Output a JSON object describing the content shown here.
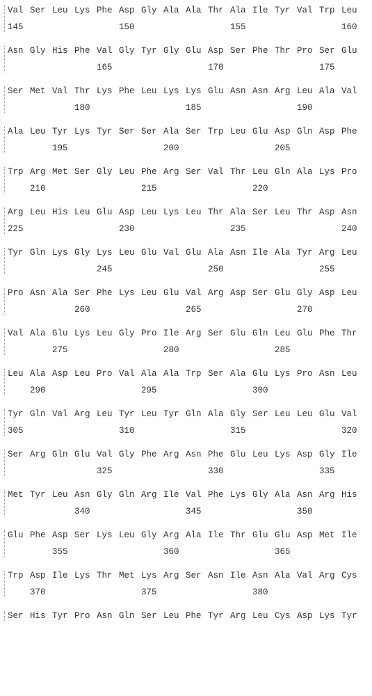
{
  "rows": [
    {
      "aa": [
        "Val",
        "Ser",
        "Leu",
        "Lys",
        "Phe",
        "Asp",
        "Gly",
        "Ala",
        "Ala",
        "Thr",
        "Ala",
        "Ile",
        "Tyr",
        "Val",
        "Trp",
        "Leu"
      ],
      "nums": [
        "145",
        "",
        "",
        "",
        "",
        "150",
        "",
        "",
        "",
        "",
        "155",
        "",
        "",
        "",
        "",
        "160"
      ]
    },
    {
      "aa": [
        "Asn",
        "Gly",
        "His",
        "Phe",
        "Val",
        "Gly",
        "Tyr",
        "Gly",
        "Glu",
        "Asp",
        "Ser",
        "Phe",
        "Thr",
        "Pro",
        "Ser",
        "Glu"
      ],
      "nums": [
        "",
        "",
        "",
        "",
        "165",
        "",
        "",
        "",
        "",
        "170",
        "",
        "",
        "",
        "",
        "175",
        ""
      ]
    },
    {
      "aa": [
        "Ser",
        "Met",
        "Val",
        "Thr",
        "Lys",
        "Phe",
        "Leu",
        "Lys",
        "Lys",
        "Glu",
        "Asn",
        "Asn",
        "Arg",
        "Leu",
        "Ala",
        "Val"
      ],
      "nums": [
        "",
        "",
        "",
        "180",
        "",
        "",
        "",
        "",
        "185",
        "",
        "",
        "",
        "",
        "190",
        "",
        ""
      ]
    },
    {
      "aa": [
        "Ala",
        "Leu",
        "Tyr",
        "Lys",
        "Tyr",
        "Ser",
        "Ser",
        "Ala",
        "Ser",
        "Trp",
        "Leu",
        "Glu",
        "Asp",
        "Gln",
        "Asp",
        "Phe"
      ],
      "nums": [
        "",
        "",
        "195",
        "",
        "",
        "",
        "",
        "200",
        "",
        "",
        "",
        "",
        "205",
        "",
        "",
        ""
      ]
    },
    {
      "aa": [
        "Trp",
        "Arg",
        "Met",
        "Ser",
        "Gly",
        "Leu",
        "Phe",
        "Arg",
        "Ser",
        "Val",
        "Thr",
        "Leu",
        "Gln",
        "Ala",
        "Lys",
        "Pro"
      ],
      "nums": [
        "",
        "210",
        "",
        "",
        "",
        "",
        "215",
        "",
        "",
        "",
        "",
        "220",
        "",
        "",
        "",
        ""
      ]
    },
    {
      "aa": [
        "Arg",
        "Leu",
        "His",
        "Leu",
        "Glu",
        "Asp",
        "Leu",
        "Lys",
        "Leu",
        "Thr",
        "Ala",
        "Ser",
        "Leu",
        "Thr",
        "Asp",
        "Asn"
      ],
      "nums": [
        "225",
        "",
        "",
        "",
        "",
        "230",
        "",
        "",
        "",
        "",
        "235",
        "",
        "",
        "",
        "",
        "240"
      ]
    },
    {
      "aa": [
        "Tyr",
        "Gln",
        "Lys",
        "Gly",
        "Lys",
        "Leu",
        "Glu",
        "Val",
        "Glu",
        "Ala",
        "Asn",
        "Ile",
        "Ala",
        "Tyr",
        "Arg",
        "Leu"
      ],
      "nums": [
        "",
        "",
        "",
        "",
        "245",
        "",
        "",
        "",
        "",
        "250",
        "",
        "",
        "",
        "",
        "255",
        ""
      ]
    },
    {
      "aa": [
        "Pro",
        "Asn",
        "Ala",
        "Ser",
        "Phe",
        "Lys",
        "Leu",
        "Glu",
        "Val",
        "Arg",
        "Asp",
        "Ser",
        "Glu",
        "Gly",
        "Asp",
        "Leu"
      ],
      "nums": [
        "",
        "",
        "",
        "260",
        "",
        "",
        "",
        "",
        "265",
        "",
        "",
        "",
        "",
        "270",
        "",
        ""
      ]
    },
    {
      "aa": [
        "Val",
        "Ala",
        "Glu",
        "Lys",
        "Leu",
        "Gly",
        "Pro",
        "Ile",
        "Arg",
        "Ser",
        "Glu",
        "Gln",
        "Leu",
        "Glu",
        "Phe",
        "Thr"
      ],
      "nums": [
        "",
        "",
        "275",
        "",
        "",
        "",
        "",
        "280",
        "",
        "",
        "",
        "",
        "285",
        "",
        "",
        ""
      ]
    },
    {
      "aa": [
        "Leu",
        "Ala",
        "Asp",
        "Leu",
        "Pro",
        "Val",
        "Ala",
        "Ala",
        "Trp",
        "Ser",
        "Ala",
        "Glu",
        "Lys",
        "Pro",
        "Asn",
        "Leu"
      ],
      "nums": [
        "",
        "290",
        "",
        "",
        "",
        "",
        "295",
        "",
        "",
        "",
        "",
        "300",
        "",
        "",
        "",
        ""
      ]
    },
    {
      "aa": [
        "Tyr",
        "Gln",
        "Val",
        "Arg",
        "Leu",
        "Tyr",
        "Leu",
        "Tyr",
        "Gln",
        "Ala",
        "Gly",
        "Ser",
        "Leu",
        "Leu",
        "Glu",
        "Val"
      ],
      "nums": [
        "305",
        "",
        "",
        "",
        "",
        "310",
        "",
        "",
        "",
        "",
        "315",
        "",
        "",
        "",
        "",
        "320"
      ]
    },
    {
      "aa": [
        "Ser",
        "Arg",
        "Gln",
        "Glu",
        "Val",
        "Gly",
        "Phe",
        "Arg",
        "Asn",
        "Phe",
        "Glu",
        "Leu",
        "Lys",
        "Asp",
        "Gly",
        "Ile"
      ],
      "nums": [
        "",
        "",
        "",
        "",
        "325",
        "",
        "",
        "",
        "",
        "330",
        "",
        "",
        "",
        "",
        "335",
        ""
      ]
    },
    {
      "aa": [
        "Met",
        "Tyr",
        "Leu",
        "Asn",
        "Gly",
        "Gln",
        "Arg",
        "Ile",
        "Val",
        "Phe",
        "Lys",
        "Gly",
        "Ala",
        "Asn",
        "Arg",
        "His"
      ],
      "nums": [
        "",
        "",
        "",
        "340",
        "",
        "",
        "",
        "",
        "345",
        "",
        "",
        "",
        "",
        "350",
        "",
        ""
      ]
    },
    {
      "aa": [
        "Glu",
        "Phe",
        "Asp",
        "Ser",
        "Lys",
        "Leu",
        "Gly",
        "Arg",
        "Ala",
        "Ile",
        "Thr",
        "Glu",
        "Glu",
        "Asp",
        "Met",
        "Ile"
      ],
      "nums": [
        "",
        "",
        "355",
        "",
        "",
        "",
        "",
        "360",
        "",
        "",
        "",
        "",
        "365",
        "",
        "",
        ""
      ]
    },
    {
      "aa": [
        "Trp",
        "Asp",
        "Ile",
        "Lys",
        "Thr",
        "Met",
        "Lys",
        "Arg",
        "Ser",
        "Asn",
        "Ile",
        "Asn",
        "Ala",
        "Val",
        "Arg",
        "Cys"
      ],
      "nums": [
        "",
        "370",
        "",
        "",
        "",
        "",
        "375",
        "",
        "",
        "",
        "",
        "380",
        "",
        "",
        "",
        ""
      ]
    },
    {
      "aa": [
        "Ser",
        "His",
        "Tyr",
        "Pro",
        "Asn",
        "Gln",
        "Ser",
        "Leu",
        "Phe",
        "Tyr",
        "Arg",
        "Leu",
        "Cys",
        "Asp",
        "Lys",
        "Tyr"
      ],
      "nums": [
        "",
        "",
        "",
        "",
        "",
        "",
        "",
        "",
        "",
        "",
        "",
        "",
        "",
        "",
        "",
        ""
      ]
    }
  ]
}
